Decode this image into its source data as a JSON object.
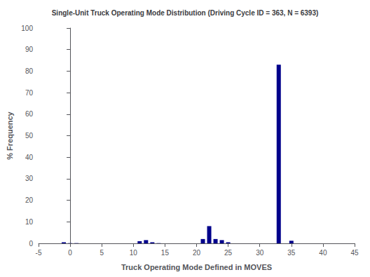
{
  "chart_data": {
    "type": "bar",
    "title": "Single-Unit Truck Operating Mode Distribution (Driving Cycle ID = 363, N = 6393)",
    "xlabel": "Truck Operating Mode Defined in MOVES",
    "ylabel": "% Frequency",
    "x": [
      -1,
      0,
      1,
      11,
      12,
      13,
      14,
      21,
      22,
      23,
      24,
      25,
      33,
      35
    ],
    "values": [
      0.5,
      0.1,
      0.1,
      1.0,
      1.5,
      0.5,
      0.1,
      2.0,
      8.0,
      2.0,
      1.5,
      0.5,
      83.0,
      1.2
    ],
    "color": "#00008B",
    "xlim": [
      -5,
      45
    ],
    "xticks": [
      -5,
      0,
      5,
      10,
      15,
      20,
      25,
      30,
      35,
      40,
      45
    ],
    "ylim": [
      0,
      100
    ],
    "yticks": [
      0,
      10,
      20,
      30,
      40,
      50,
      60,
      70,
      80,
      90,
      100
    ],
    "grid": false
  }
}
